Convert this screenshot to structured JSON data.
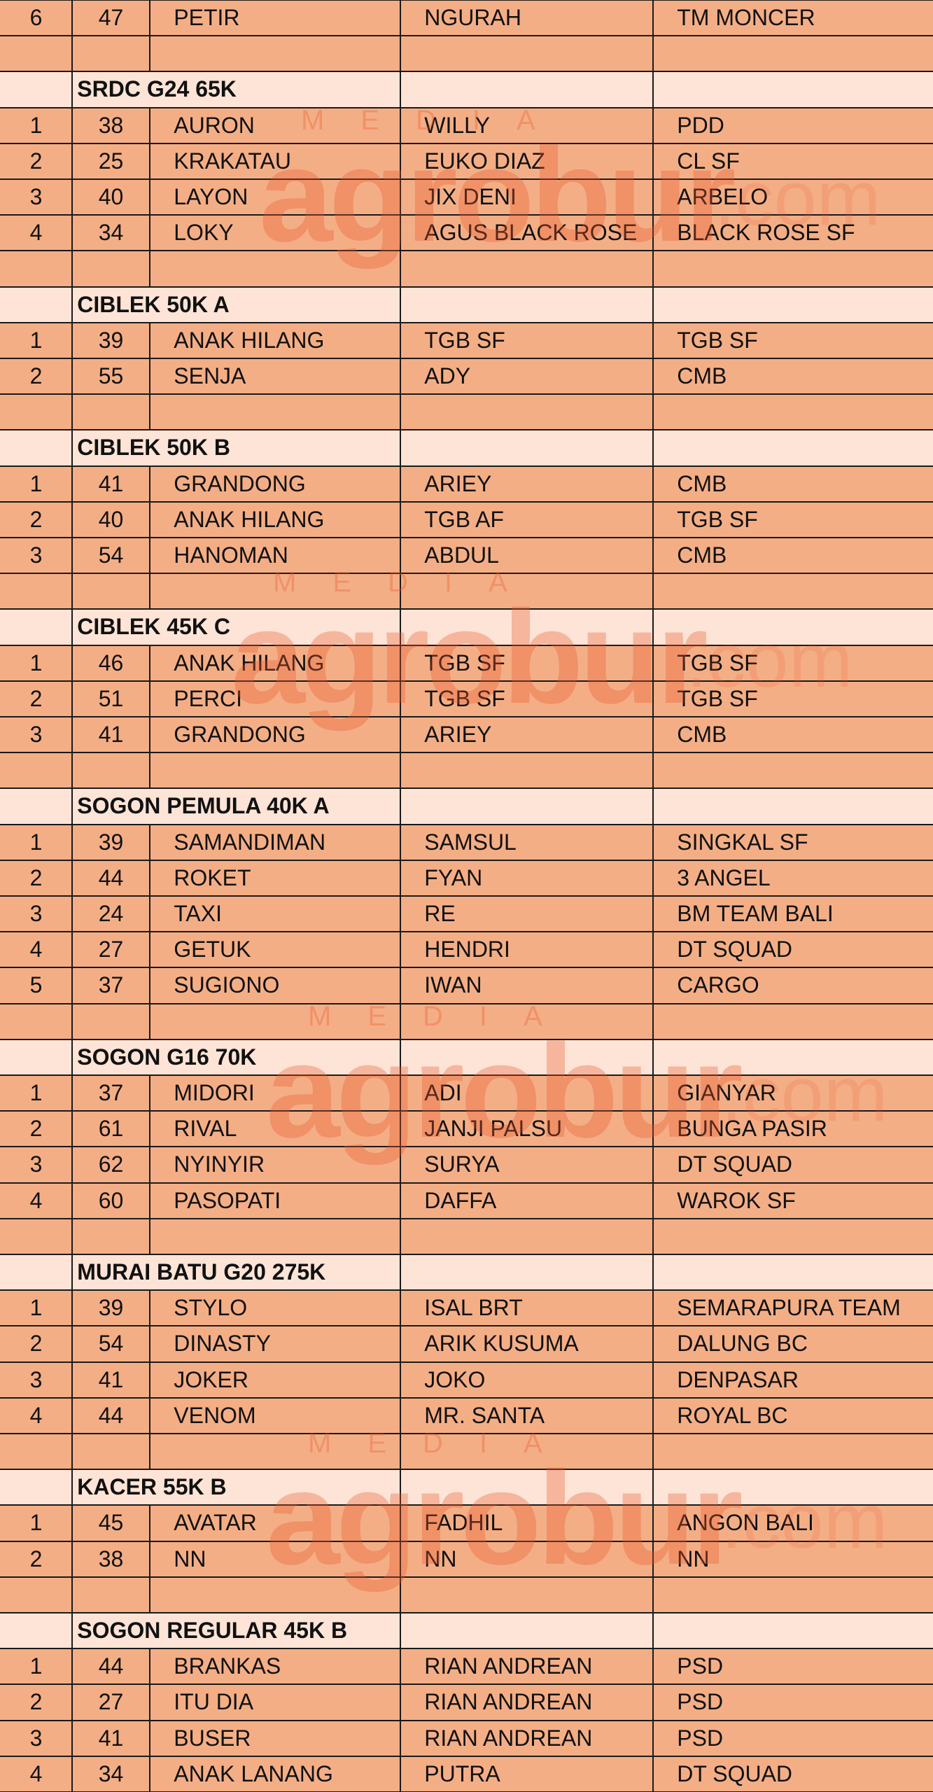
{
  "first_row": [
    "6",
    "47",
    "PETIR",
    "NGURAH",
    "TM MONCER"
  ],
  "sections": [
    {
      "title": "SRDC G24 65K",
      "rows": [
        [
          "1",
          "38",
          "AURON",
          "WILLY",
          "PDD"
        ],
        [
          "2",
          "25",
          "KRAKATAU",
          "EUKO DIAZ",
          "CL SF"
        ],
        [
          "3",
          "40",
          "LAYON",
          "JIX DENI",
          "ARBELO"
        ],
        [
          "4",
          "34",
          "LOKY",
          "AGUS BLACK ROSE",
          "BLACK ROSE SF"
        ]
      ]
    },
    {
      "title": "CIBLEK 50K A",
      "rows": [
        [
          "1",
          "39",
          "ANAK HILANG",
          "TGB SF",
          "TGB SF"
        ],
        [
          "2",
          "55",
          "SENJA",
          "ADY",
          "CMB"
        ]
      ]
    },
    {
      "title": "CIBLEK 50K B",
      "rows": [
        [
          "1",
          "41",
          "GRANDONG",
          "ARIEY",
          "CMB"
        ],
        [
          "2",
          "40",
          "ANAK HILANG",
          "TGB AF",
          "TGB SF"
        ],
        [
          "3",
          "54",
          "HANOMAN",
          "ABDUL",
          "CMB"
        ]
      ]
    },
    {
      "title": "CIBLEK 45K C",
      "rows": [
        [
          "1",
          "46",
          "ANAK HILANG",
          "TGB SF",
          "TGB SF"
        ],
        [
          "2",
          "51",
          "PERCI",
          "TGB SF",
          "TGB SF"
        ],
        [
          "3",
          "41",
          "GRANDONG",
          "ARIEY",
          "CMB"
        ]
      ]
    },
    {
      "title": "SOGON PEMULA 40K A",
      "rows": [
        [
          "1",
          "39",
          "SAMANDIMAN",
          "SAMSUL",
          "SINGKAL SF"
        ],
        [
          "2",
          "44",
          "ROKET",
          "FYAN",
          "3 ANGEL"
        ],
        [
          "3",
          "24",
          "TAXI",
          "RE",
          "BM TEAM BALI"
        ],
        [
          "4",
          "27",
          "GETUK",
          "HENDRI",
          "DT SQUAD"
        ],
        [
          "5",
          "37",
          "SUGIONO",
          "IWAN",
          "CARGO"
        ]
      ]
    },
    {
      "title": "SOGON G16 70K",
      "rows": [
        [
          "1",
          "37",
          "MIDORI",
          "ADI",
          "GIANYAR"
        ],
        [
          "2",
          "61",
          "RIVAL",
          "JANJI PALSU",
          "BUNGA PASIR"
        ],
        [
          "3",
          "62",
          "NYINYIR",
          "SURYA",
          "DT SQUAD"
        ],
        [
          "4",
          "60",
          "PASOPATI",
          "DAFFA",
          "WAROK SF"
        ]
      ]
    },
    {
      "title": "MURAI BATU G20 275K",
      "rows": [
        [
          "1",
          "39",
          "STYLO",
          "ISAL BRT",
          "SEMARAPURA TEAM"
        ],
        [
          "2",
          "54",
          "DINASTY",
          "ARIK KUSUMA",
          "DALUNG BC"
        ],
        [
          "3",
          "41",
          "JOKER",
          "JOKO",
          "DENPASAR"
        ],
        [
          "4",
          "44",
          "VENOM",
          "MR. SANTA",
          "ROYAL BC"
        ]
      ]
    },
    {
      "title": "KACER 55K B",
      "rows": [
        [
          "1",
          "45",
          "AVATAR",
          "FADHIL",
          "ANGON BALI"
        ],
        [
          "2",
          "38",
          "NN",
          "NN",
          "NN"
        ]
      ]
    },
    {
      "title": "SOGON REGULAR 45K B",
      "rows": [
        [
          "1",
          "44",
          "BRANKAS",
          "RIAN ANDREAN",
          "PSD"
        ],
        [
          "2",
          "27",
          "ITU DIA",
          "RIAN ANDREAN",
          "PSD"
        ],
        [
          "3",
          "41",
          "BUSER",
          "RIAN ANDREAN",
          "PSD"
        ],
        [
          "4",
          "34",
          "ANAK LANANG",
          "PUTRA",
          "DT SQUAD"
        ]
      ]
    }
  ],
  "watermark": {
    "label": "MEDIA",
    "brand": "agrobur",
    "suffix": ".com"
  }
}
